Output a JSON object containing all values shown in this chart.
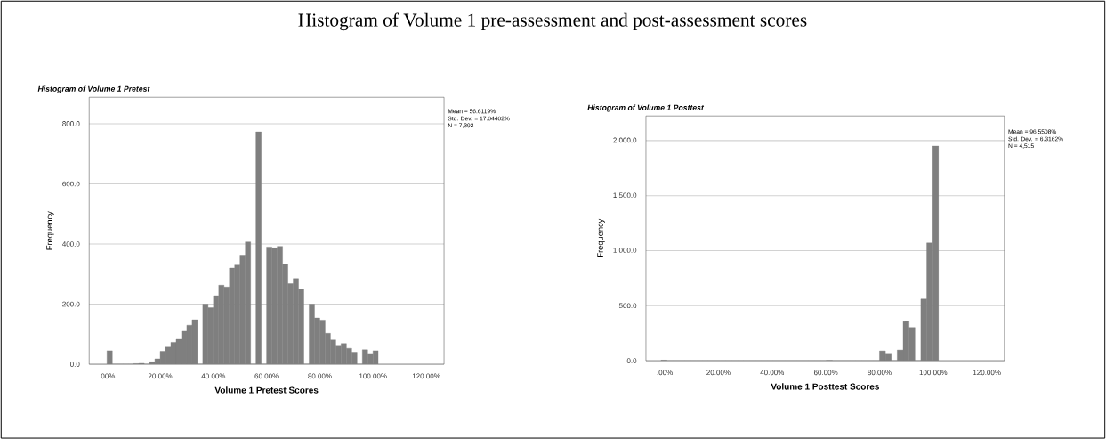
{
  "chart_data": [
    {
      "type": "histogram",
      "title": "Histogram of Volume 1 Pretest",
      "xlabel": "Volume 1 Pretest Scores",
      "ylabel": "Frequency",
      "annotations": [
        "Histogram of Volume 1 pre-assessment and post-assessment scores",
        "Mean = 56.6119%",
        "Std. Dev. = 17.04402%",
        "N = 7,392"
      ],
      "bins": [
        0,
        2,
        4,
        6,
        8,
        10,
        12,
        14,
        16,
        18,
        20,
        22,
        24,
        26,
        28,
        30,
        32,
        34,
        36,
        38,
        40,
        42,
        44,
        46,
        48,
        50,
        52,
        54,
        56,
        58,
        60,
        62,
        64,
        66,
        68,
        70,
        72,
        74,
        76,
        78,
        80,
        82,
        84,
        86,
        88,
        90,
        92,
        94,
        96,
        98,
        100,
        102
      ],
      "values": [
        45,
        0,
        0,
        0,
        0,
        2,
        3,
        0,
        8,
        18,
        43,
        57,
        73,
        83,
        110,
        130,
        148,
        0,
        200,
        188,
        228,
        263,
        257,
        320,
        330,
        363,
        407,
        0,
        773,
        0,
        390,
        387,
        392,
        333,
        268,
        285,
        250,
        0,
        200,
        154,
        147,
        103,
        81,
        63,
        69,
        53,
        40,
        0,
        48,
        36,
        45
      ],
      "color": "#7f7f7f",
      "grid": "y",
      "xlim": [
        -6.7,
        126.7
      ],
      "ylim": [
        0,
        888
      ],
      "xticks": [
        {
          "value": 0,
          "label": ".00%"
        },
        {
          "value": 20,
          "label": "20.00%"
        },
        {
          "value": 40,
          "label": "40.00%"
        },
        {
          "value": 60,
          "label": "60.00%"
        },
        {
          "value": 80,
          "label": "80.00%"
        },
        {
          "value": 100,
          "label": "100.00%"
        },
        {
          "value": 120,
          "label": "120.00%"
        }
      ],
      "yticks": [
        {
          "value": 0,
          "label": "0.0"
        },
        {
          "value": 200,
          "label": "200.0"
        },
        {
          "value": 400,
          "label": "400.0"
        },
        {
          "value": 600,
          "label": "600.0"
        },
        {
          "value": 800,
          "label": "800.0"
        }
      ]
    },
    {
      "type": "histogram",
      "title": "Histogram of Volume 1 Posttest",
      "xlabel": "Volume 1 Posttest Scores",
      "ylabel": "Frequency",
      "annotations": [
        "Mean = 96.5508%",
        "Std. Dev. = 6.3162%",
        "N = 4,515"
      ],
      "bins": [
        -1.4,
        0.8,
        3.0,
        5.2,
        7.4,
        9.6,
        11.8,
        14.0,
        16.2,
        18.4,
        20.6,
        22.8,
        25.0,
        27.2,
        29.4,
        31.6,
        33.8,
        36.0,
        38.2,
        40.4,
        42.6,
        44.8,
        47.0,
        49.2,
        51.4,
        53.6,
        55.8,
        58.0,
        60.2,
        62.4,
        64.6,
        66.8,
        69.0,
        71.2,
        73.4,
        75.6,
        77.8,
        80.0,
        82.2,
        84.4,
        86.6,
        88.8,
        91.0,
        93.2,
        95.4,
        97.6,
        99.8,
        102.0
      ],
      "values": [
        5,
        0,
        0,
        0,
        0,
        0,
        0,
        0,
        0,
        0,
        0,
        0,
        0,
        0,
        0,
        0,
        0,
        0,
        0,
        0,
        0,
        0,
        0,
        0,
        0,
        0,
        0,
        0,
        3,
        0,
        0,
        0,
        0,
        0,
        0,
        0,
        0,
        89,
        67,
        0,
        97,
        356,
        302,
        0,
        561,
        1070,
        1951
      ],
      "color": "#7f7f7f",
      "grid": "y",
      "xlim": [
        -7,
        126.5
      ],
      "ylim": [
        0,
        2224
      ],
      "xticks": [
        {
          "value": 0,
          "label": ".00%"
        },
        {
          "value": 20,
          "label": "20.00%"
        },
        {
          "value": 40,
          "label": "40.00%"
        },
        {
          "value": 60,
          "label": "60.00%"
        },
        {
          "value": 80,
          "label": "80.00%"
        },
        {
          "value": 100,
          "label": "100.00%"
        },
        {
          "value": 120,
          "label": "120.00%"
        }
      ],
      "yticks": [
        {
          "value": 0,
          "label": "0.0"
        },
        {
          "value": 500,
          "label": "500.0"
        },
        {
          "value": 1000,
          "label": "1,000.0"
        },
        {
          "value": 1500,
          "label": "1,500.0"
        },
        {
          "value": 2000,
          "label": "2,000.0"
        }
      ]
    }
  ]
}
